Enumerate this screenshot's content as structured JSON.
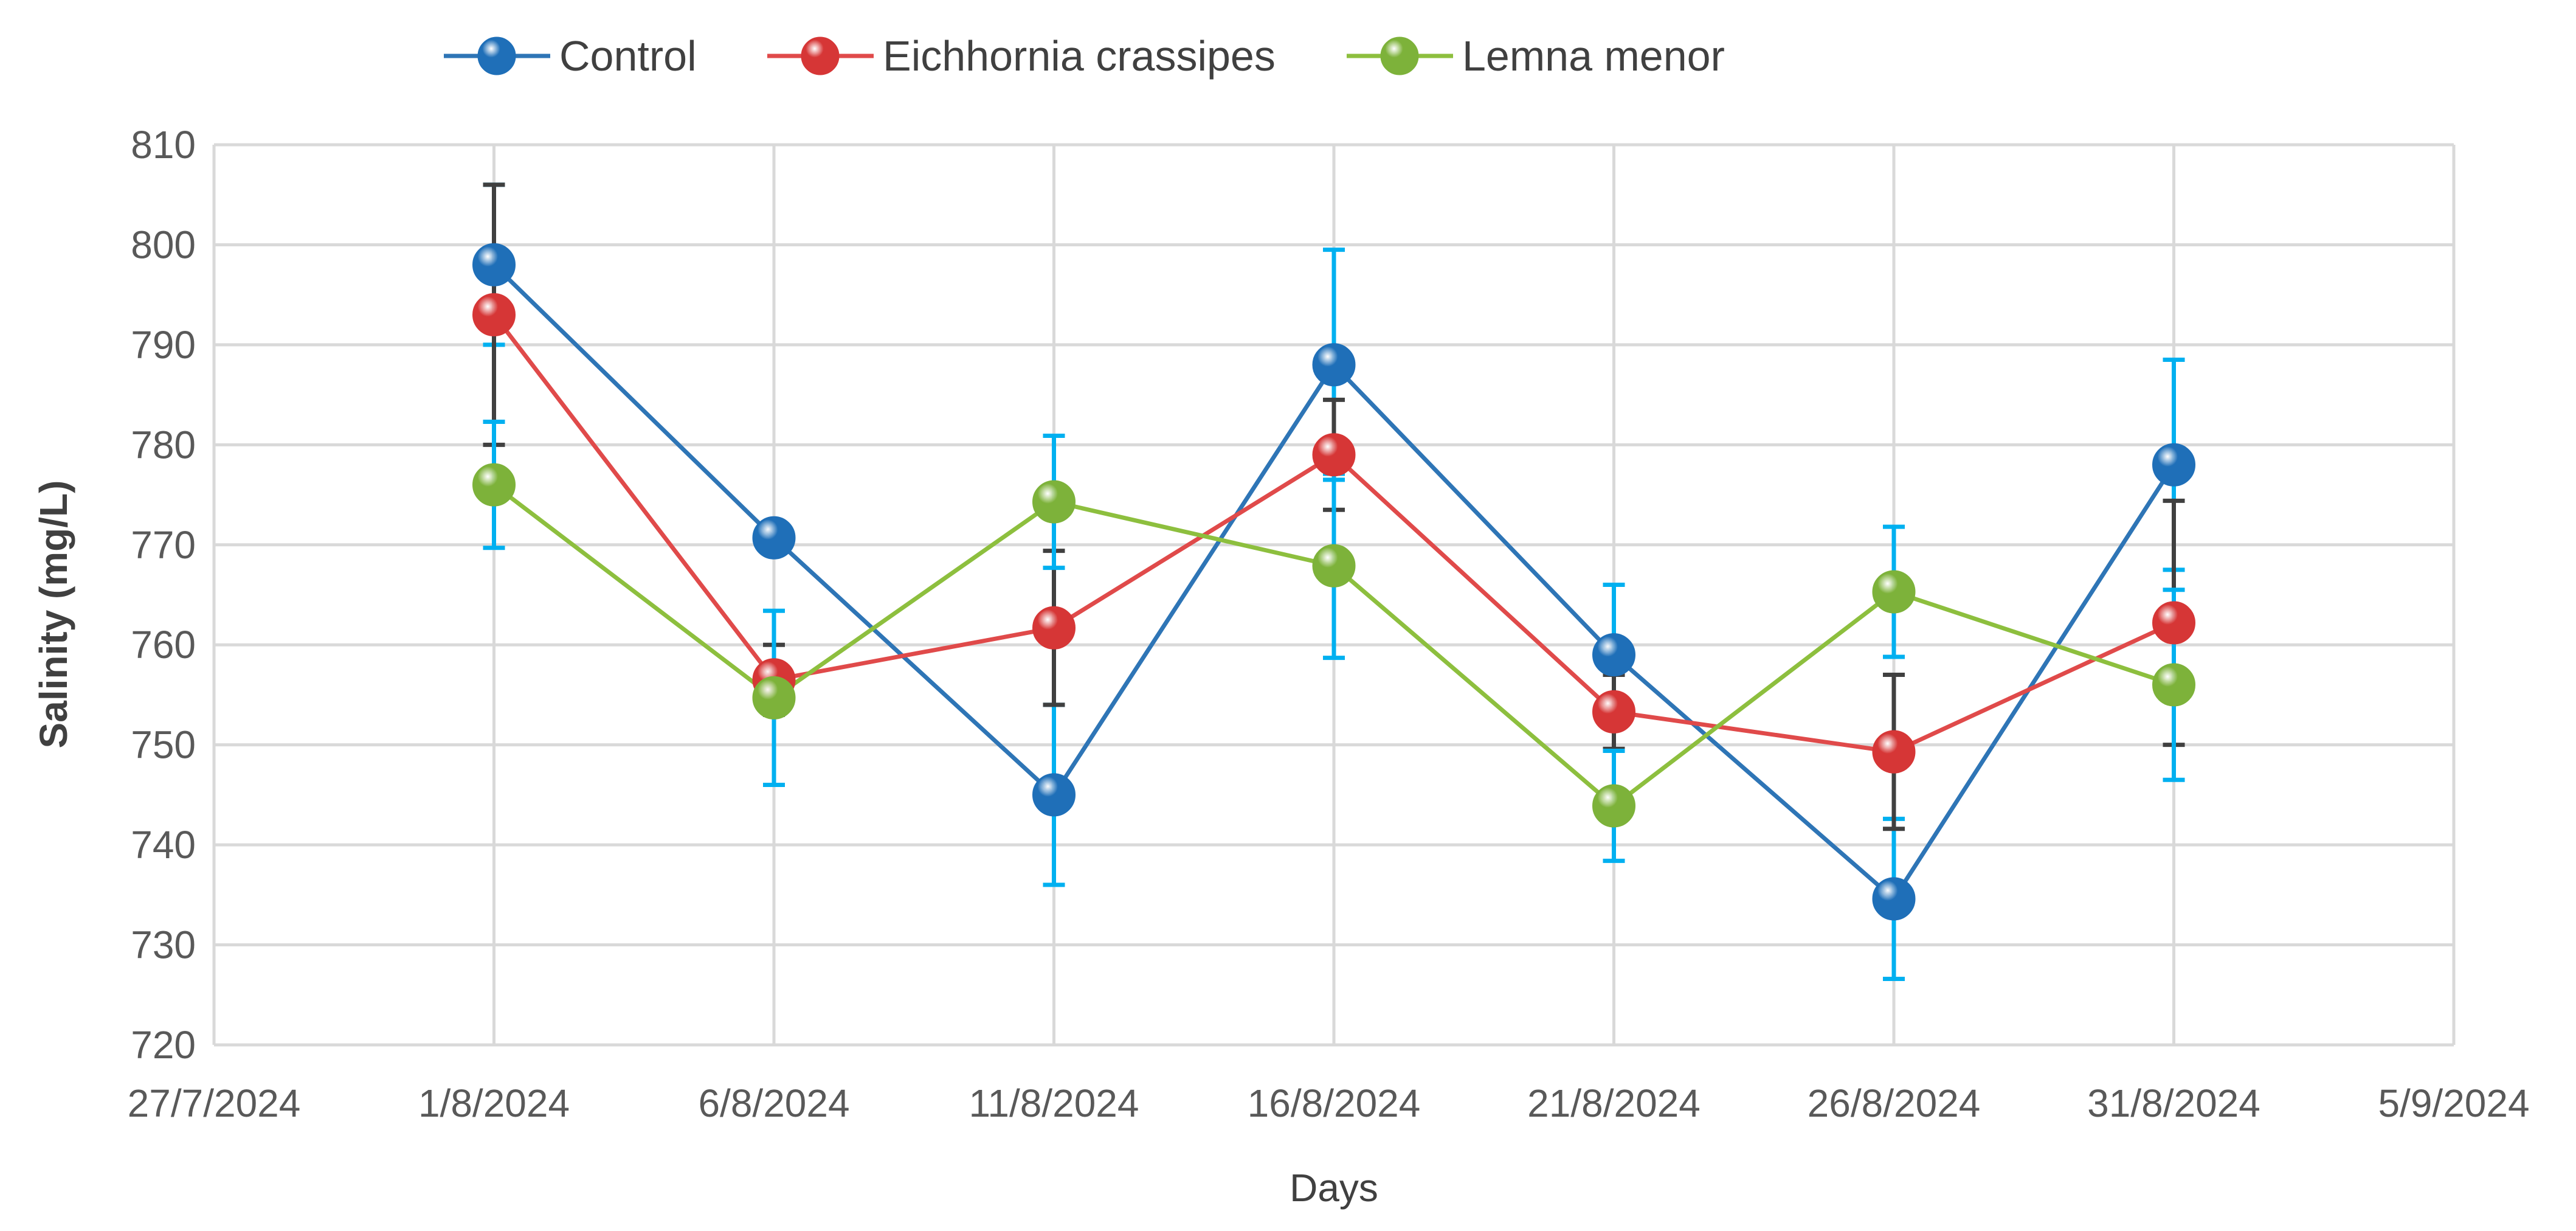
{
  "chart_data": {
    "type": "line",
    "title": "",
    "xlabel": "Days",
    "ylabel": "Salinity (mg/L)",
    "ylim": [
      720,
      810
    ],
    "y_ticks": [
      720,
      730,
      740,
      750,
      760,
      770,
      780,
      790,
      800,
      810
    ],
    "x_ticks": [
      "27/7/2024",
      "1/8/2024",
      "6/8/2024",
      "11/8/2024",
      "16/8/2024",
      "21/8/2024",
      "26/8/2024",
      "31/8/2024",
      "5/9/2024"
    ],
    "categories": [
      "1/8/2024",
      "6/8/2024",
      "11/8/2024",
      "16/8/2024",
      "21/8/2024",
      "26/8/2024",
      "31/8/2024"
    ],
    "grid": true,
    "legend_position": "top",
    "series": [
      {
        "name": "Control",
        "color": "#2E75B6",
        "marker": "#1F6FB8",
        "values": [
          798,
          770.7,
          745,
          788,
          759,
          734.6,
          778
        ],
        "errors": [
          8,
          0,
          9,
          11.5,
          7,
          8,
          10.5
        ],
        "error_color": "#00B0F0"
      },
      {
        "name": "Eichhornia crassipes",
        "color": "#E04A4A",
        "marker": "#D63636",
        "values": [
          793,
          756.5,
          761.7,
          779,
          753.3,
          749.3,
          762.2
        ],
        "errors": [
          13,
          3.5,
          7.7,
          5.5,
          3.7,
          7.7,
          12.2
        ],
        "error_color": "#404040"
      },
      {
        "name": "Lemna menor",
        "color": "#8DBF3E",
        "marker": "#7DB23A",
        "values": [
          776,
          754.7,
          774.3,
          767.9,
          743.9,
          765.3,
          756
        ],
        "errors": [
          6.3,
          8.7,
          6.6,
          9.2,
          5.5,
          6.5,
          9.5
        ],
        "error_color": "#00B0F0"
      }
    ]
  }
}
